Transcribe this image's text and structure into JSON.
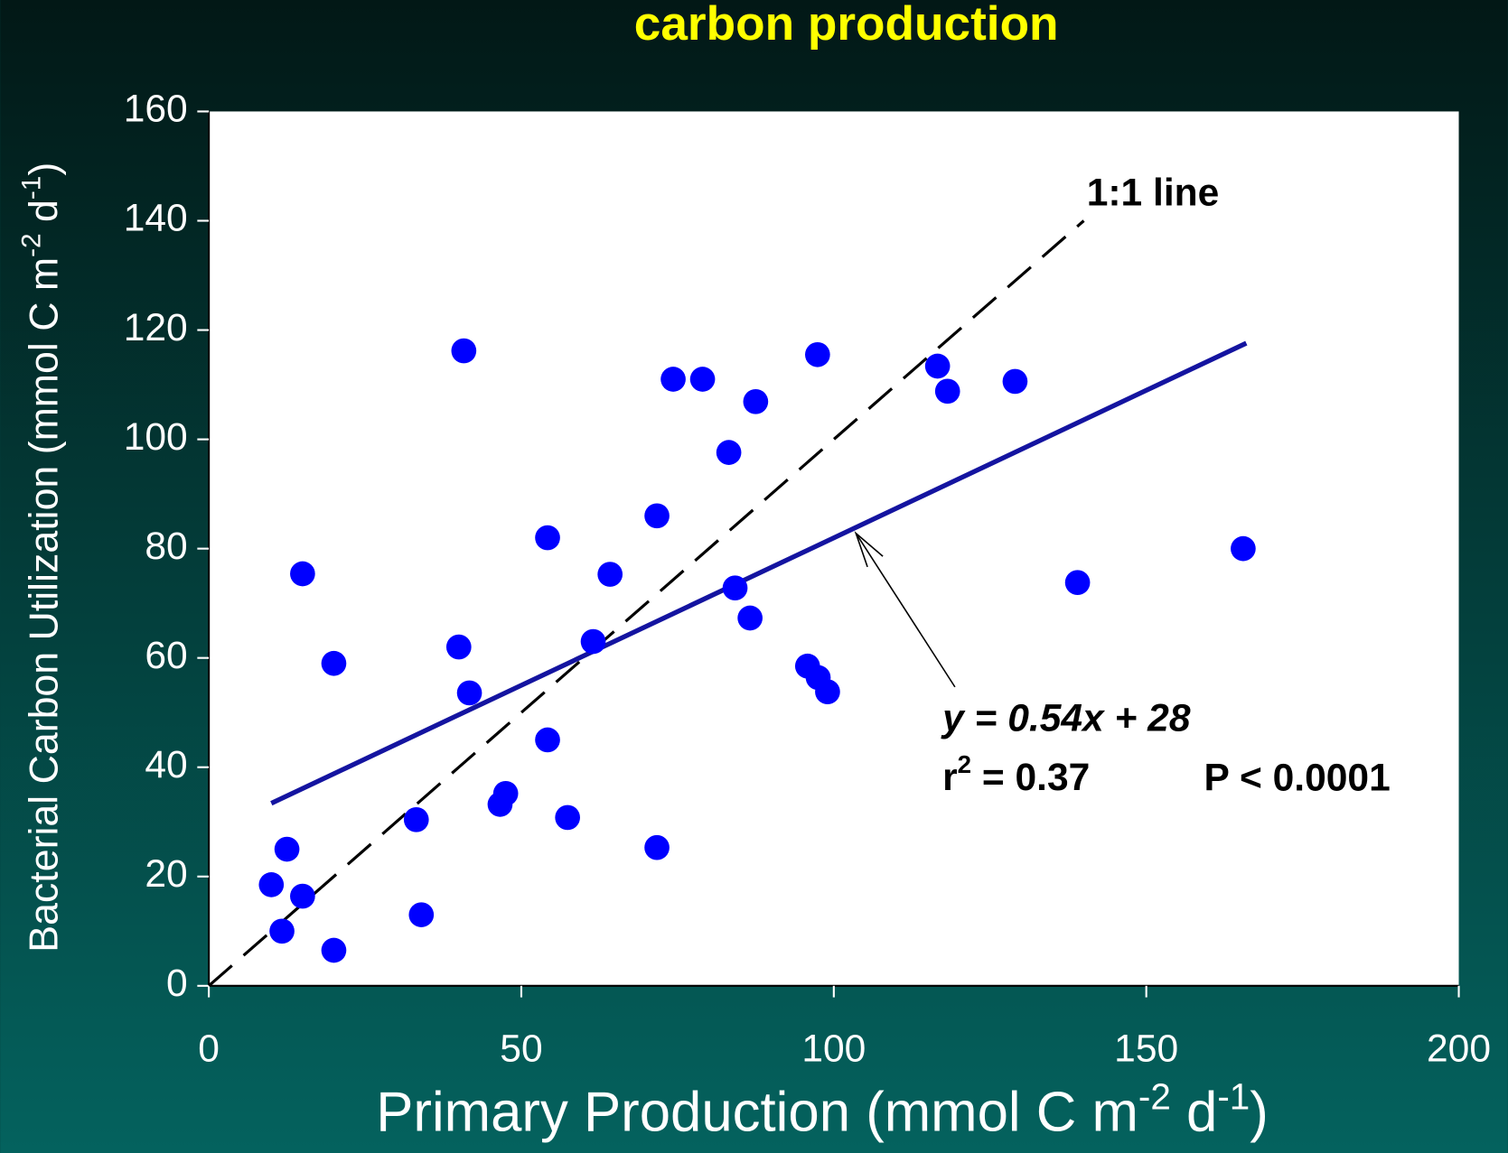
{
  "chart_data": {
    "type": "scatter",
    "title": "carbon production",
    "x_label": [
      "Primary Production (mmol C m",
      "-2",
      " d",
      "-1",
      ")"
    ],
    "y_label": [
      "Bacterial Carbon Utilization (mmol C m",
      "-2",
      " d",
      "-1",
      ")"
    ],
    "xlim": [
      0,
      200
    ],
    "xticks": [
      0,
      50,
      100,
      150,
      200
    ],
    "ylim": [
      0,
      160
    ],
    "yticks": [
      0,
      20,
      40,
      60,
      80,
      100,
      120,
      140,
      160
    ],
    "color": "#0000ff",
    "x": [
      10,
      12.5,
      15,
      15,
      11.7,
      20,
      20,
      33.2,
      34,
      40,
      40.8,
      41.7,
      46.6,
      47.5,
      54.2,
      54.2,
      57.4,
      61.5,
      64.2,
      71.7,
      71.7,
      74.3,
      79,
      83.2,
      84.2,
      86.6,
      87.5,
      95.8,
      97.4,
      97.5,
      99,
      116.6,
      118.2,
      129,
      139,
      165.5
    ],
    "values": [
      18.5,
      25,
      75.4,
      16.4,
      10,
      59,
      6.5,
      30.4,
      13,
      62,
      116.2,
      53.6,
      33.2,
      35.2,
      82,
      45,
      30.8,
      63,
      75.3,
      86,
      25.3,
      111,
      111,
      97.6,
      72.8,
      67.3,
      106.9,
      58.5,
      115.5,
      56.4,
      53.8,
      113.4,
      108.8,
      110.6,
      73.8,
      80
    ],
    "fit_line": {
      "x": [
        10,
        166
      ],
      "y": [
        33.4,
        117.6
      ],
      "color": "#1414a0"
    },
    "identity_line": {
      "label": "1:1 line",
      "x": [
        0,
        140
      ],
      "y": [
        0,
        140
      ]
    },
    "equation": "y = 0.54x + 28",
    "r2": [
      "r",
      "2",
      " = 0.37"
    ],
    "p_value": "P < 0.0001"
  }
}
